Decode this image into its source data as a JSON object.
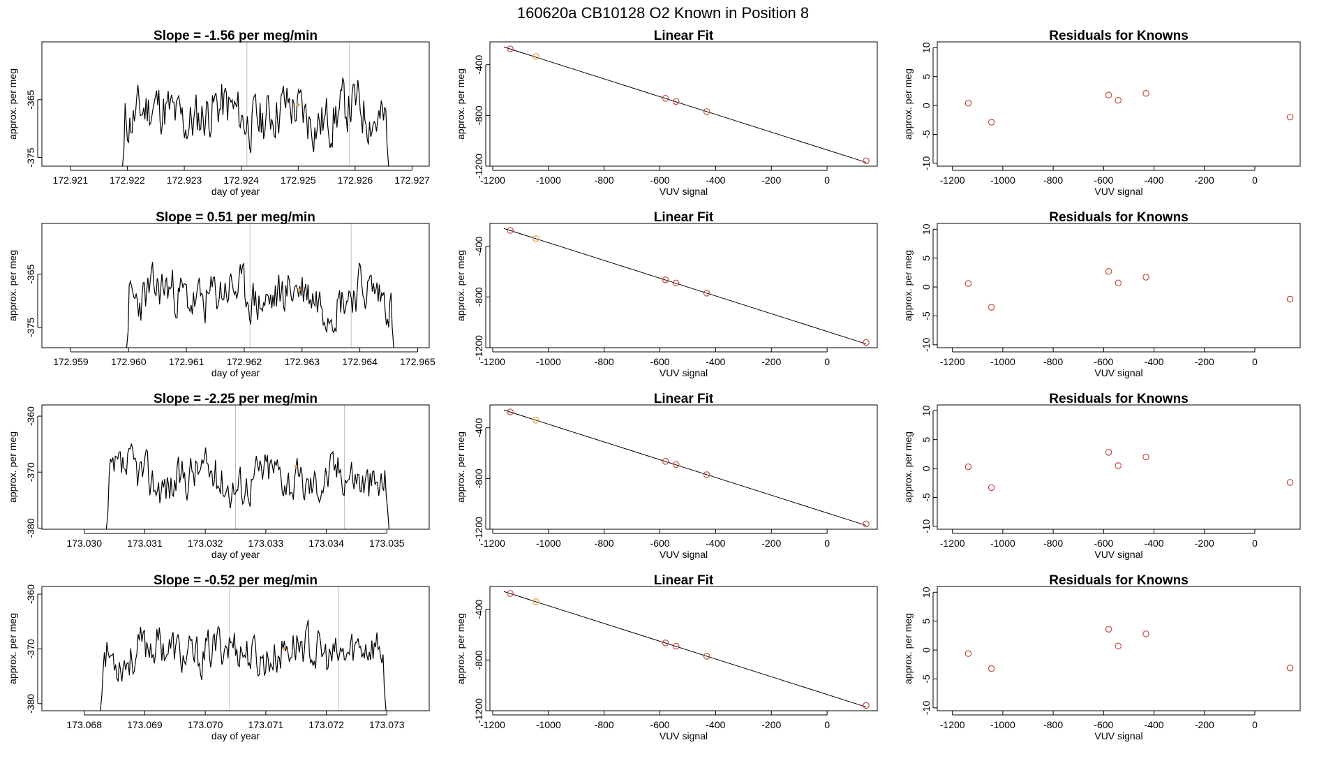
{
  "suptitle": "160620a     CB10128    O2 Known in Position  8",
  "colors": {
    "trace": "#000000",
    "marker": "#e8a33a",
    "residual": "#c5493d",
    "gridline": "#bfbfbf",
    "fit": "#000000"
  },
  "chart_data": [
    {
      "type": "line",
      "title": "Slope =  -1.56  per meg/min",
      "xlabel": "day of year",
      "ylabel": "approx. per meg",
      "xlim": [
        172.9205,
        172.9273
      ],
      "ylim": [
        -376.5,
        -355
      ],
      "xticks": [
        172.921,
        172.922,
        172.923,
        172.924,
        172.925,
        172.926,
        172.927
      ],
      "xtick_labels": [
        "172.921",
        "172.922",
        "172.923",
        "172.924",
        "172.925",
        "172.926",
        "172.927"
      ],
      "yticks": [
        -375,
        -365
      ],
      "ytick_labels": [
        "-375",
        "-365"
      ],
      "vlines": [
        172.9241,
        172.9259
      ],
      "marker": [
        172.925,
        -365.9
      ],
      "trace": {
        "start": 172.9219,
        "end": 172.9266,
        "base": -367.5,
        "amp": 5.3,
        "seed": 11,
        "n": 230
      }
    },
    {
      "type": "scatter",
      "title": "Linear Fit",
      "xlabel": "VUV signal",
      "ylabel": "approx. per meg",
      "xlim": [
        -1210,
        180
      ],
      "ylim": [
        -1200,
        -220
      ],
      "xticks": [
        -1200,
        -1000,
        -800,
        -600,
        -400,
        -200,
        0
      ],
      "xtick_labels": [
        "-1200",
        "-1000",
        "-800",
        "-600",
        "-400",
        "-200",
        "0"
      ],
      "yticks": [
        -1200,
        -800,
        -400
      ],
      "ytick_labels": [
        "-1200",
        "-800",
        "-400"
      ],
      "fit_line": [
        [
          -1160,
          -260
        ],
        [
          140,
          -1170
        ]
      ],
      "points": [
        [
          -1137,
          -275
        ],
        [
          -1045,
          -335,
          "highlight"
        ],
        [
          -580,
          -665
        ],
        [
          -542,
          -690
        ],
        [
          -432,
          -770
        ],
        [
          140,
          -1158
        ]
      ]
    },
    {
      "type": "scatter",
      "title": "Residuals for Knowns",
      "xlabel": "VUV signal",
      "ylabel": "approx. per meg",
      "xlim": [
        -1260,
        180
      ],
      "ylim": [
        -10.5,
        11
      ],
      "xticks": [
        -1200,
        -1000,
        -800,
        -600,
        -400,
        -200,
        0
      ],
      "xtick_labels": [
        "-1200",
        "-1000",
        "-800",
        "-600",
        "-400",
        "-200",
        "0"
      ],
      "yticks": [
        -10,
        -5,
        0,
        5,
        10
      ],
      "ytick_labels": [
        "-10",
        "-5",
        "0",
        "5",
        "10"
      ],
      "points": [
        [
          -1137,
          0.4
        ],
        [
          -1045,
          -2.9
        ],
        [
          -580,
          1.8
        ],
        [
          -542,
          0.9
        ],
        [
          -432,
          2.1
        ],
        [
          140,
          -2.0
        ]
      ]
    },
    {
      "type": "line",
      "title": "Slope =  0.51  per meg/min",
      "xlabel": "day of year",
      "ylabel": "approx. per meg",
      "xlim": [
        172.9585,
        172.9652
      ],
      "ylim": [
        -378.8,
        -355.5
      ],
      "xticks": [
        172.959,
        172.96,
        172.961,
        172.962,
        172.963,
        172.964,
        172.965
      ],
      "xtick_labels": [
        "172.959",
        "172.960",
        "172.961",
        "172.962",
        "172.963",
        "172.964",
        "172.965"
      ],
      "yticks": [
        -375,
        -365
      ],
      "ytick_labels": [
        "-375",
        "-365"
      ],
      "vlines": [
        172.9621,
        172.96385
      ],
      "marker": [
        172.96295,
        -368
      ],
      "trace": {
        "start": 172.95995,
        "end": 172.9646,
        "base": -369,
        "amp": 5,
        "seed": 23,
        "n": 230
      }
    },
    {
      "type": "scatter",
      "title": "Linear Fit",
      "xlabel": "VUV signal",
      "ylabel": "approx. per meg",
      "xlim": [
        -1210,
        180
      ],
      "ylim": [
        -1200,
        -220
      ],
      "xticks": [
        -1200,
        -1000,
        -800,
        -600,
        -400,
        -200,
        0
      ],
      "xtick_labels": [
        "-1200",
        "-1000",
        "-800",
        "-600",
        "-400",
        "-200",
        "0"
      ],
      "yticks": [
        -1200,
        -800,
        -400
      ],
      "ytick_labels": [
        "-1200",
        "-800",
        "-400"
      ],
      "fit_line": [
        [
          -1160,
          -260
        ],
        [
          140,
          -1170
        ]
      ],
      "points": [
        [
          -1137,
          -275
        ],
        [
          -1045,
          -340,
          "highlight"
        ],
        [
          -580,
          -665
        ],
        [
          -542,
          -690
        ],
        [
          -432,
          -770
        ],
        [
          140,
          -1158
        ]
      ]
    },
    {
      "type": "scatter",
      "title": "Residuals for Knowns",
      "xlabel": "VUV signal",
      "ylabel": "approx. per meg",
      "xlim": [
        -1260,
        180
      ],
      "ylim": [
        -10.5,
        11
      ],
      "xticks": [
        -1200,
        -1000,
        -800,
        -600,
        -400,
        -200,
        0
      ],
      "xtick_labels": [
        "-1200",
        "-1000",
        "-800",
        "-600",
        "-400",
        "-200",
        "0"
      ],
      "yticks": [
        -10,
        -5,
        0,
        5,
        10
      ],
      "ytick_labels": [
        "-10",
        "-5",
        "0",
        "5",
        "10"
      ],
      "points": [
        [
          -1137,
          0.6
        ],
        [
          -1045,
          -3.5
        ],
        [
          -580,
          2.7
        ],
        [
          -542,
          0.7
        ],
        [
          -432,
          1.7
        ],
        [
          140,
          -2.1
        ]
      ]
    },
    {
      "type": "line",
      "title": "Slope =  -2.25  per meg/min",
      "xlabel": "day of year",
      "ylabel": "approx. per meg",
      "xlim": [
        173.0293,
        173.0357
      ],
      "ylim": [
        -380.2,
        -358
      ],
      "xticks": [
        173.03,
        173.031,
        173.032,
        173.033,
        173.034,
        173.035
      ],
      "xtick_labels": [
        "173.030",
        "173.031",
        "173.032",
        "173.033",
        "173.034",
        "173.035"
      ],
      "yticks": [
        -380,
        -370,
        -360
      ],
      "ytick_labels": [
        "-380",
        "-370",
        "-360"
      ],
      "vlines": [
        173.0325,
        173.0343
      ],
      "marker": [
        173.0335,
        -369
      ],
      "trace": {
        "start": 173.03035,
        "end": 173.03505,
        "base": -371,
        "amp": 4.5,
        "seed": 37,
        "n": 230
      }
    },
    {
      "type": "scatter",
      "title": "Linear Fit",
      "xlabel": "VUV signal",
      "ylabel": "approx. per meg",
      "xlim": [
        -1210,
        180
      ],
      "ylim": [
        -1200,
        -220
      ],
      "xticks": [
        -1200,
        -1000,
        -800,
        -600,
        -400,
        -200,
        0
      ],
      "xtick_labels": [
        "-1200",
        "-1000",
        "-800",
        "-600",
        "-400",
        "-200",
        "0"
      ],
      "yticks": [
        -1200,
        -800,
        -400
      ],
      "ytick_labels": [
        "-1200",
        "-800",
        "-400"
      ],
      "fit_line": [
        [
          -1160,
          -260
        ],
        [
          140,
          -1170
        ]
      ],
      "points": [
        [
          -1137,
          -275
        ],
        [
          -1045,
          -340,
          "highlight"
        ],
        [
          -580,
          -665
        ],
        [
          -542,
          -690
        ],
        [
          -432,
          -770
        ],
        [
          140,
          -1158
        ]
      ]
    },
    {
      "type": "scatter",
      "title": "Residuals for Knowns",
      "xlabel": "VUV signal",
      "ylabel": "approx. per meg",
      "xlim": [
        -1260,
        180
      ],
      "ylim": [
        -10.5,
        11
      ],
      "xticks": [
        -1200,
        -1000,
        -800,
        -600,
        -400,
        -200,
        0
      ],
      "xtick_labels": [
        "-1200",
        "-1000",
        "-800",
        "-600",
        "-400",
        "-200",
        "0"
      ],
      "yticks": [
        -10,
        -5,
        0,
        5,
        10
      ],
      "ytick_labels": [
        "-10",
        "-5",
        "0",
        "5",
        "10"
      ],
      "points": [
        [
          -1137,
          0.3
        ],
        [
          -1045,
          -3.3
        ],
        [
          -580,
          2.8
        ],
        [
          -542,
          0.5
        ],
        [
          -432,
          2.0
        ],
        [
          140,
          -2.4
        ]
      ]
    },
    {
      "type": "line",
      "title": "Slope =  -0.52  per meg/min",
      "xlabel": "day of year",
      "ylabel": "approx. per meg",
      "xlim": [
        173.0673,
        173.0737
      ],
      "ylim": [
        -381.3,
        -358.6
      ],
      "xticks": [
        173.068,
        173.069,
        173.07,
        173.071,
        173.072,
        173.073
      ],
      "xtick_labels": [
        "173.068",
        "173.069",
        "173.070",
        "173.071",
        "173.072",
        "173.073"
      ],
      "yticks": [
        -380,
        -370,
        -360
      ],
      "ytick_labels": [
        "-380",
        "-370",
        "-360"
      ],
      "vlines": [
        173.0704,
        173.0722
      ],
      "marker": [
        173.0713,
        -370
      ],
      "trace": {
        "start": 173.06825,
        "end": 173.073,
        "base": -370.5,
        "amp": 4.5,
        "seed": 53,
        "n": 230
      }
    },
    {
      "type": "scatter",
      "title": "Linear Fit",
      "xlabel": "VUV signal",
      "ylabel": "approx. per meg",
      "xlim": [
        -1210,
        180
      ],
      "ylim": [
        -1200,
        -220
      ],
      "xticks": [
        -1200,
        -1000,
        -800,
        -600,
        -400,
        -200,
        0
      ],
      "xtick_labels": [
        "-1200",
        "-1000",
        "-800",
        "-600",
        "-400",
        "-200",
        "0"
      ],
      "yticks": [
        -1200,
        -800,
        -400
      ],
      "ytick_labels": [
        "-1200",
        "-800",
        "-400"
      ],
      "fit_line": [
        [
          -1160,
          -260
        ],
        [
          140,
          -1170
        ]
      ],
      "points": [
        [
          -1137,
          -275
        ],
        [
          -1045,
          -340,
          "highlight"
        ],
        [
          -580,
          -665
        ],
        [
          -542,
          -690
        ],
        [
          -432,
          -770
        ],
        [
          140,
          -1158
        ]
      ]
    },
    {
      "type": "scatter",
      "title": "Residuals for Knowns",
      "xlabel": "VUV signal",
      "ylabel": "approx. per meg",
      "xlim": [
        -1260,
        180
      ],
      "ylim": [
        -10.5,
        11
      ],
      "xticks": [
        -1200,
        -1000,
        -800,
        -600,
        -400,
        -200,
        0
      ],
      "xtick_labels": [
        "-1200",
        "-1000",
        "-800",
        "-600",
        "-400",
        "-200",
        "0"
      ],
      "yticks": [
        -10,
        -5,
        0,
        5,
        10
      ],
      "ytick_labels": [
        "-10",
        "-5",
        "0",
        "5",
        "10"
      ],
      "points": [
        [
          -1137,
          -0.6
        ],
        [
          -1045,
          -3.2
        ],
        [
          -580,
          3.6
        ],
        [
          -542,
          0.7
        ],
        [
          -432,
          2.8
        ],
        [
          140,
          -3.1
        ]
      ]
    }
  ]
}
